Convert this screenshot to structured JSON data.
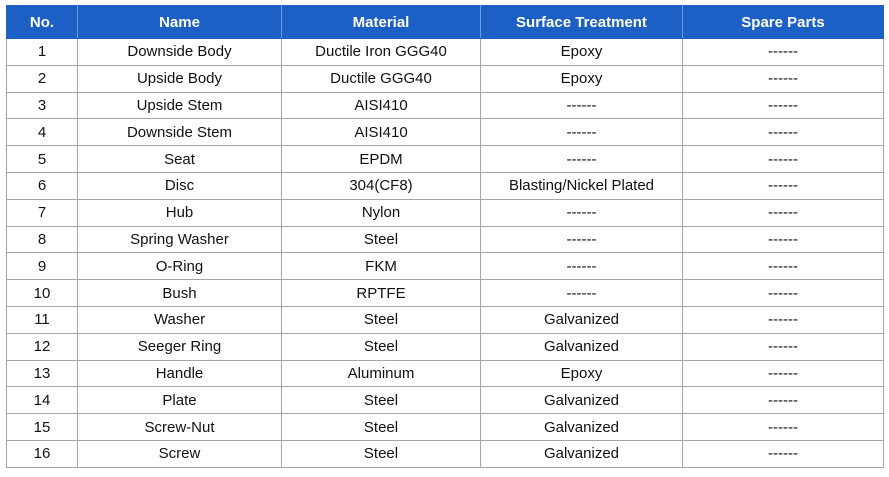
{
  "table": {
    "header": [
      "No.",
      "Name",
      "Material",
      "Surface Treatment",
      "Spare Parts"
    ],
    "rows": [
      [
        "1",
        "Downside Body",
        "Ductile Iron GGG40",
        "Epoxy",
        "------"
      ],
      [
        "2",
        "Upside Body",
        "Ductile GGG40",
        "Epoxy",
        "------"
      ],
      [
        "3",
        "Upside Stem",
        "AISI410",
        "------",
        "------"
      ],
      [
        "4",
        "Downside Stem",
        "AISI410",
        "------",
        "------"
      ],
      [
        "5",
        "Seat",
        "EPDM",
        "------",
        "------"
      ],
      [
        "6",
        "Disc",
        "304(CF8)",
        "Blasting/Nickel Plated",
        "------"
      ],
      [
        "7",
        "Hub",
        "Nylon",
        "------",
        "------"
      ],
      [
        "8",
        "Spring Washer",
        "Steel",
        "------",
        "------"
      ],
      [
        "9",
        "O-Ring",
        "FKM",
        "------",
        "------"
      ],
      [
        "10",
        "Bush",
        "RPTFE",
        "------",
        "------"
      ],
      [
        "11",
        "Washer",
        "Steel",
        "Galvanized",
        "------"
      ],
      [
        "12",
        "Seeger Ring",
        "Steel",
        "Galvanized",
        "------"
      ],
      [
        "13",
        "Handle",
        "Aluminum",
        "Epoxy",
        "------"
      ],
      [
        "14",
        "Plate",
        "Steel",
        "Galvanized",
        "------"
      ],
      [
        "15",
        "Screw-Nut",
        "Steel",
        "Galvanized",
        "------"
      ],
      [
        "16",
        "Screw",
        "Steel",
        "Galvanized",
        "------"
      ]
    ]
  }
}
